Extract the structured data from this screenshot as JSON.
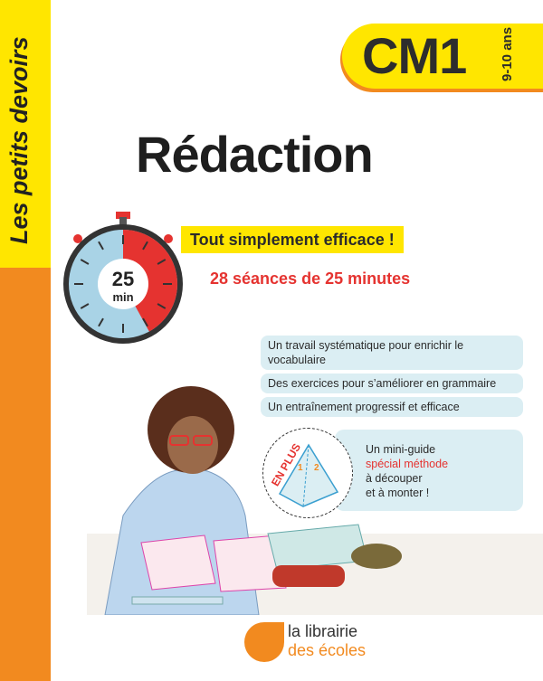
{
  "series": "Les petits devoirs",
  "level": {
    "grade": "CM1",
    "age": "9-10 ans"
  },
  "title": "Rédaction",
  "tagline": "Tout simplement efficace !",
  "subtitle": "28 séances de 25 minutes",
  "timer": {
    "minutes": "25",
    "unit": "min",
    "fraction_elapsed": 0.42
  },
  "features": [
    "Un travail systématique pour enrichir le vocabulaire",
    "Des exercices pour s’améliorer en grammaire",
    "Un entraînement progressif et efficace"
  ],
  "bonus": {
    "badge": "EN PLUS",
    "line1": "Un mini-guide",
    "highlight": "spécial méthode",
    "line3": "à découper",
    "line4": "et à monter !",
    "pyramid_labels": [
      "1",
      "2"
    ]
  },
  "publisher": {
    "line1": "la librairie",
    "line2": "des écoles"
  },
  "colors": {
    "yellow": "#ffe600",
    "orange": "#f28a1f",
    "red": "#e53330",
    "light_blue": "#dbeef3"
  }
}
